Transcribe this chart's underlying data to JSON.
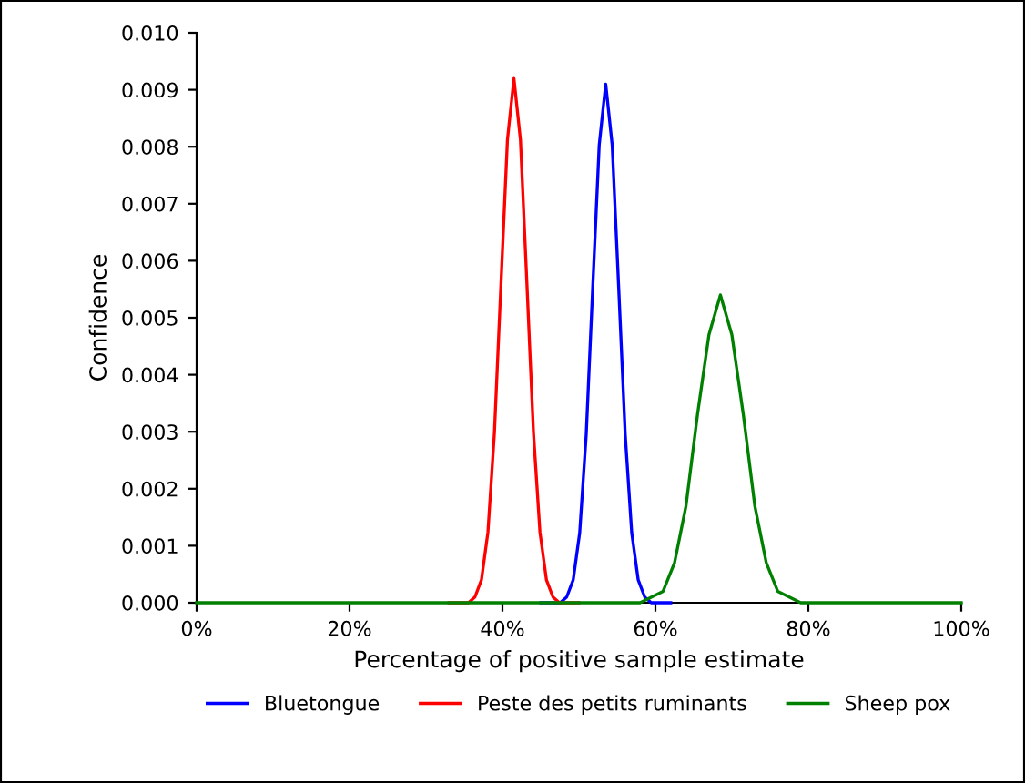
{
  "chart_data": {
    "type": "line",
    "xlabel": "Percentage of positive sample estimate",
    "ylabel": "Confidence",
    "xlim": [
      0,
      100
    ],
    "ylim": [
      0,
      0.01
    ],
    "xticks": [
      {
        "value": 0,
        "label": "0%"
      },
      {
        "value": 20,
        "label": "20%"
      },
      {
        "value": 40,
        "label": "40%"
      },
      {
        "value": 60,
        "label": "60%"
      },
      {
        "value": 80,
        "label": "80%"
      },
      {
        "value": 100,
        "label": "100%"
      }
    ],
    "yticks": [
      {
        "value": 0,
        "label": "0.000"
      },
      {
        "value": 0.001,
        "label": "0.001"
      },
      {
        "value": 0.002,
        "label": "0.002"
      },
      {
        "value": 0.003,
        "label": "0.003"
      },
      {
        "value": 0.004,
        "label": "0.004"
      },
      {
        "value": 0.005,
        "label": "0.005"
      },
      {
        "value": 0.006,
        "label": "0.006"
      },
      {
        "value": 0.007,
        "label": "0.007"
      },
      {
        "value": 0.008,
        "label": "0.008"
      },
      {
        "value": 0.009,
        "label": "0.009"
      },
      {
        "value": 0.01,
        "label": "0.010"
      }
    ],
    "grid": false,
    "legend": "bottom",
    "marker": "none",
    "line_style": "solid",
    "series": [
      {
        "name": "Bluetongue",
        "color": "#0000ff",
        "x": [
          45,
          47.55,
          48.4,
          49.25,
          50.1,
          50.95,
          51.8,
          52.65,
          53.5,
          54.35,
          55.2,
          56.05,
          56.9,
          57.75,
          58.6,
          59.45,
          62
        ],
        "values": [
          0,
          0,
          0.0001,
          0.0004,
          0.00123,
          0.00295,
          0.00552,
          0.00803,
          0.0091,
          0.00803,
          0.00552,
          0.00295,
          0.00123,
          0.0004,
          0.0001,
          0,
          0
        ]
      },
      {
        "name": "Peste des petits ruminants",
        "color": "#ff0000",
        "x": [
          33,
          35.55,
          36.4,
          37.25,
          38.1,
          38.95,
          39.8,
          40.65,
          41.5,
          42.35,
          43.2,
          44.05,
          44.9,
          45.75,
          46.6,
          47.45,
          50
        ],
        "values": [
          0,
          0,
          0.0001,
          0.0004,
          0.00124,
          0.00299,
          0.00558,
          0.00812,
          0.0092,
          0.00812,
          0.00558,
          0.00299,
          0.00124,
          0.0004,
          0.0001,
          0,
          0
        ]
      },
      {
        "name": "Sheep pox",
        "color": "#008000",
        "x": [
          0,
          40,
          55,
          58,
          59.5,
          61,
          62.5,
          64,
          65.5,
          67,
          68.5,
          70,
          71.5,
          73,
          74.5,
          76,
          77.5,
          79,
          82,
          90,
          100
        ],
        "values": [
          0,
          0,
          0,
          0,
          0.0001,
          0.0002,
          0.0007,
          0.0017,
          0.0033,
          0.0047,
          0.0054,
          0.0047,
          0.0033,
          0.0017,
          0.0007,
          0.0002,
          0.0001,
          0,
          0,
          0,
          0
        ]
      }
    ]
  }
}
